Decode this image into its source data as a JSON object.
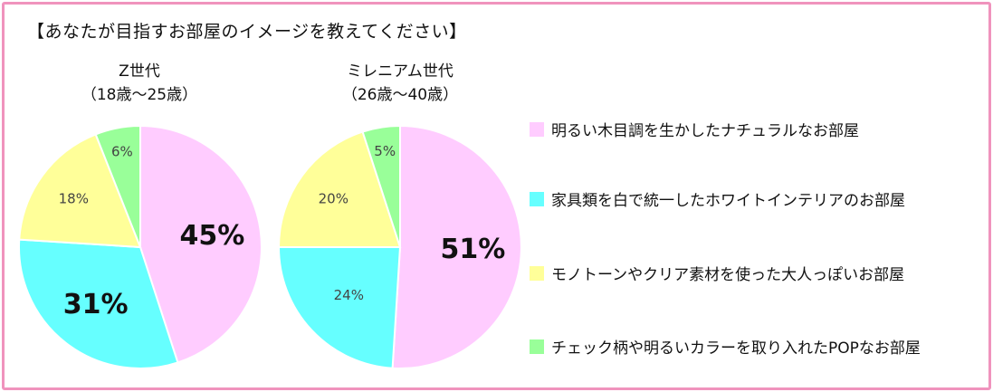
{
  "title": "【あなたが目指すお部屋のイメージを教えてください】",
  "colors": {
    "border": "#f093bd",
    "natural": "#ffccff",
    "white": "#66ffff",
    "mono": "#ffff99",
    "pop": "#99ff99",
    "slice_edge": "#ffffff"
  },
  "chart_data": [
    {
      "type": "pie",
      "title": "Z世代",
      "subtitle": "（18歳～25歳）",
      "categories": [
        "明るい木目調を生かしたナチュラルなお部屋",
        "家具類を白で統一したホワイトインテリアのお部屋",
        "モノトーンやクリア素材を使った大人っぽいお部屋",
        "チェック柄や明るいカラーを取り入れたPOPなお部屋"
      ],
      "values": [
        45,
        31,
        18,
        6
      ],
      "labels": [
        "45%",
        "31%",
        "18%",
        "6%"
      ]
    },
    {
      "type": "pie",
      "title": "ミレニアム世代",
      "subtitle": "（26歳～40歳）",
      "categories": [
        "明るい木目調を生かしたナチュラルなお部屋",
        "家具類を白で統一したホワイトインテリアのお部屋",
        "モノトーンやクリア素材を使った大人っぽいお部屋",
        "チェック柄や明るいカラーを取り入れたPOPなお部屋"
      ],
      "values": [
        51,
        24,
        20,
        5
      ],
      "labels": [
        "51%",
        "24%",
        "20%",
        "5%"
      ]
    }
  ],
  "legend": [
    {
      "label": "明るい木目調を生かしたナチュラルなお部屋",
      "color": "#ffccff"
    },
    {
      "label": "家具類を白で統一したホワイトインテリアのお部屋",
      "color": "#66ffff"
    },
    {
      "label": "モノトーンやクリア素材を使った大人っぽいお部屋",
      "color": "#ffff99"
    },
    {
      "label": "チェック柄や明るいカラーを取り入れたPOPなお部屋",
      "color": "#99ff99"
    }
  ]
}
